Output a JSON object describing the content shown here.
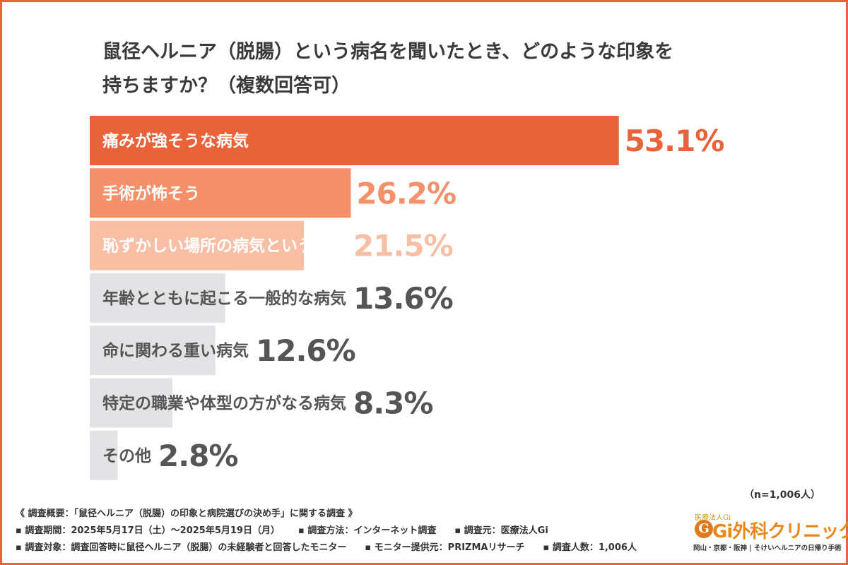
{
  "title_line1": "鼠径ヘルニア（脱腸）という病名を聞いたとき、どのような印象を",
  "title_line2": "持ちますか？（複数回答可）",
  "sample_note": "（n=1,006人）",
  "chart_data": {
    "type": "bar",
    "orientation": "horizontal",
    "categories": [
      "痛みが強そうな病気",
      "手術が怖そう",
      "恥ずかしい場所の病気という印象",
      "年齢とともに起こる一般的な病気",
      "命に関わる重い病気",
      "特定の職業や体型の方がなる病気",
      "その他"
    ],
    "values": [
      53.1,
      26.2,
      21.5,
      13.6,
      12.6,
      8.3,
      2.8
    ],
    "value_labels": [
      "53.1%",
      "26.2%",
      "21.5%",
      "13.6%",
      "12.6%",
      "8.3%",
      "2.8%"
    ],
    "unit": "%",
    "colors": [
      "#e8623a",
      "#f4906a",
      "#f9bfa5",
      "#e3e3e6",
      "#e3e3e6",
      "#e3e3e6",
      "#e3e3e6"
    ],
    "value_label_colors": [
      "#e8623a",
      "#f4906a",
      "#f9bfa5",
      "#555555",
      "#555555",
      "#555555",
      "#555555"
    ],
    "label_colors": [
      "#ffffff",
      "#ffffff",
      "#ffffff",
      "#555555",
      "#555555",
      "#555555",
      "#555555"
    ],
    "xlim": [
      0,
      100
    ],
    "grid": false,
    "legend": "none"
  },
  "footer": {
    "overview": "《 調査概要：「鼠径ヘルニア（脱腸）の印象と病院選びの決め手」に関する調査 》",
    "period": "▪ 調査期間：2025年5月17日（土）〜2025年5月19日（月）",
    "method": "▪ 調査方法：インターネット調査",
    "source": "▪ 調査元：医療法人Gi",
    "target": "▪ 調査対象：調査回答時に鼠径ヘルニア（脱腸）の未経験者と回答したモニター",
    "provider": "▪ モニター提供元：PRIZMAリサーチ",
    "count": "▪ 調査人数：1,006人"
  },
  "logo": {
    "small_text": "医療法人Gi",
    "mark": "G",
    "name": "Gi外科クリニック",
    "tagline": "岡山・京都・阪神 | そけいヘルニアの日帰り手術",
    "color": "#e8881c"
  }
}
